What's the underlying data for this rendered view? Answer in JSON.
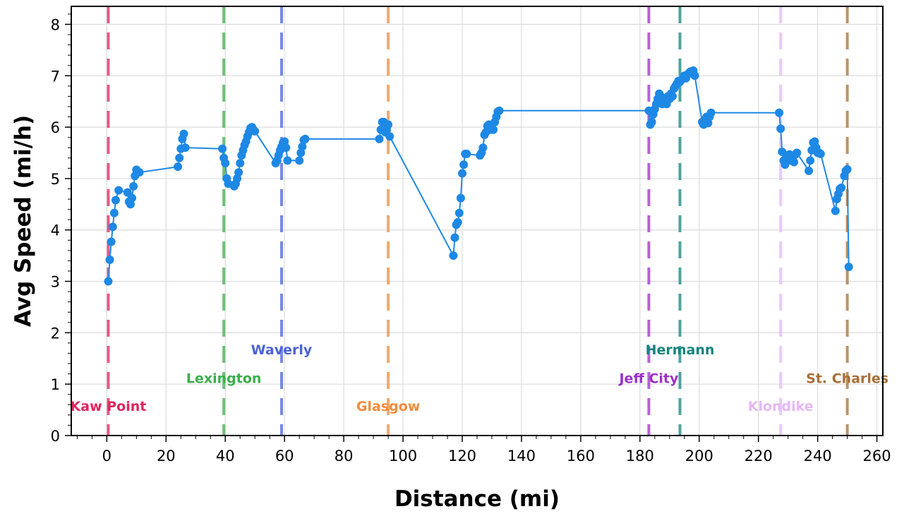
{
  "chart_data": {
    "type": "line",
    "xlabel": "Distance (mi)",
    "ylabel": "Avg Speed (mi/h)",
    "xlim": [
      -12,
      262
    ],
    "ylim": [
      0,
      8.35
    ],
    "x_ticks": [
      0,
      20,
      40,
      60,
      80,
      100,
      120,
      140,
      160,
      180,
      200,
      220,
      240,
      260
    ],
    "y_ticks": [
      0,
      1,
      2,
      3,
      4,
      5,
      6,
      7,
      8
    ],
    "grid": true,
    "line_color": "#1E88E5",
    "series": [
      {
        "x": [
          0.5,
          1,
          1.5,
          2,
          2.5,
          3,
          4,
          7,
          7.5,
          8,
          8.5,
          9,
          9.5,
          10,
          11,
          24,
          24.5,
          25,
          25.5,
          26,
          26.5,
          39,
          39.5,
          40,
          40.5,
          41,
          43,
          43.5,
          44,
          44.5,
          45,
          45.5,
          46,
          46.5,
          47,
          47.5,
          48,
          48.5,
          49,
          49.5,
          50,
          57,
          57.5,
          58,
          58.5,
          59,
          59.5,
          60,
          60.5,
          61,
          65,
          65.5,
          66,
          66.5,
          67,
          92,
          92.5,
          93,
          93.5,
          94,
          94.5,
          95,
          95.5,
          117,
          117.5,
          118,
          118.5,
          119,
          119.5,
          120,
          120.5,
          121,
          121.5,
          126,
          126.5,
          127,
          127.5,
          128,
          128.5,
          129,
          129.5,
          130,
          130.5,
          131,
          131.5,
          132,
          132.5,
          183,
          183.5,
          184,
          184.5,
          185,
          185.5,
          186,
          186.5,
          187,
          187.5,
          188,
          188.5,
          189,
          189.5,
          190,
          190.5,
          191,
          191.5,
          192,
          192.5,
          193,
          193.5,
          194,
          194.5,
          195,
          195.5,
          196,
          196.5,
          197,
          197.5,
          198,
          198.5,
          201,
          201.5,
          202,
          202.5,
          203,
          203.5,
          204,
          227,
          227.5,
          228,
          228.5,
          229,
          229.5,
          230,
          230.5,
          231,
          231.5,
          232,
          232.5,
          233,
          237,
          237.5,
          238,
          238.5,
          239,
          239.5,
          240,
          240.5,
          241,
          246,
          246.5,
          247,
          247.5,
          248,
          249,
          249.5,
          250,
          250.5
        ],
        "y": [
          3.0,
          3.42,
          3.77,
          4.06,
          4.33,
          4.58,
          4.77,
          4.73,
          4.55,
          4.5,
          4.62,
          4.85,
          5.05,
          5.17,
          5.12,
          5.23,
          5.4,
          5.58,
          5.77,
          5.87,
          5.6,
          5.58,
          5.4,
          5.3,
          5.0,
          4.9,
          4.85,
          4.9,
          5.0,
          5.12,
          5.3,
          5.45,
          5.55,
          5.65,
          5.72,
          5.82,
          5.9,
          5.98,
          6.0,
          5.95,
          5.92,
          5.3,
          5.35,
          5.45,
          5.55,
          5.62,
          5.7,
          5.72,
          5.6,
          5.35,
          5.35,
          5.5,
          5.62,
          5.75,
          5.77,
          5.77,
          5.95,
          6.1,
          6.1,
          5.9,
          5.95,
          6.05,
          5.82,
          3.5,
          3.85,
          4.1,
          4.15,
          4.33,
          4.62,
          5.1,
          5.27,
          5.48,
          5.48,
          5.45,
          5.5,
          5.6,
          5.85,
          5.9,
          6.02,
          6.05,
          5.95,
          6.0,
          5.95,
          6.1,
          6.2,
          6.3,
          6.32,
          6.32,
          6.05,
          6.1,
          6.25,
          6.35,
          6.45,
          6.55,
          6.65,
          6.6,
          6.45,
          6.5,
          6.55,
          6.45,
          6.6,
          6.55,
          6.65,
          6.6,
          6.75,
          6.8,
          6.85,
          6.9,
          6.88,
          6.92,
          6.95,
          7.0,
          6.95,
          7.02,
          7.05,
          7.08,
          7.05,
          7.1,
          7.0,
          6.1,
          6.05,
          6.15,
          6.2,
          6.08,
          6.2,
          6.28,
          6.28,
          5.97,
          5.52,
          5.35,
          5.27,
          5.4,
          5.45,
          5.47,
          5.35,
          5.4,
          5.32,
          5.47,
          5.5,
          5.15,
          5.35,
          5.55,
          5.7,
          5.72,
          5.6,
          5.5,
          5.5,
          5.48,
          4.37,
          4.6,
          4.7,
          4.8,
          4.82,
          5.05,
          5.15,
          5.18,
          3.28
        ]
      }
    ],
    "markers": [
      {
        "x": 0.5,
        "label": "Kaw Point",
        "color": "#E0245E",
        "label_y": 0.48
      },
      {
        "x": 39.5,
        "label": "Lexington",
        "color": "#3BAE49",
        "label_y": 1.02
      },
      {
        "x": 59,
        "label": "Waverly",
        "color": "#4A63D8",
        "label_y": 1.58
      },
      {
        "x": 95,
        "label": "Glasgow",
        "color": "#F08C3C",
        "label_y": 0.48
      },
      {
        "x": 183,
        "label": "Jeff City",
        "color": "#9B30C9",
        "label_y": 1.02
      },
      {
        "x": 193.5,
        "label": "Hermann",
        "color": "#13857E",
        "label_y": 1.58
      },
      {
        "x": 227.5,
        "label": "Klondike",
        "color": "#E4B8F7",
        "label_y": 0.48
      },
      {
        "x": 250,
        "label": "St. Charles",
        "color": "#A86F35",
        "label_y": 1.02
      }
    ]
  }
}
